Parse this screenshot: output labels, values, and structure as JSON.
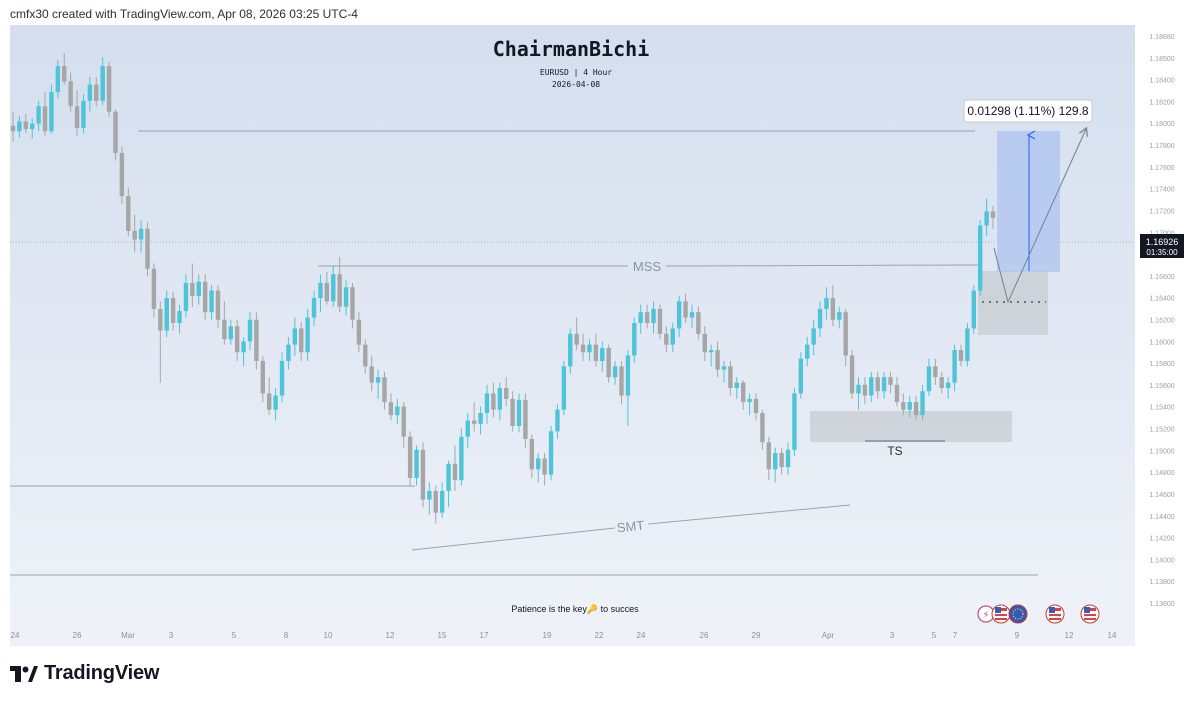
{
  "caption": "cmfx30 created with TradingView.com, Apr 08, 2026 03:25 UTC-4",
  "brand": "TradingView",
  "colors": {
    "bull": "#4dc4d8",
    "bear": "#a6a6a6",
    "background_top": "#d4deee",
    "background_bottom": "#eef2f8",
    "target_box": "#a9c0ef",
    "zone": "#c8ccd2"
  },
  "chart_data": {
    "type": "candlestick",
    "title": "ChairmanBichi",
    "subtitle": "EURUSD | 4 Hour",
    "date_label": "2026-04-08",
    "bottom_note": "Patience is the key🔑 to succes",
    "ylim": [
      1.132,
      1.187
    ],
    "y_ticks": [
      "1.18680",
      "1.18500",
      "1.18400",
      "1.18200",
      "1.18000",
      "1.17800",
      "1.17600",
      "1.17400",
      "1.17200",
      "1.17000",
      "1.16800",
      "1.16600",
      "1.16400",
      "1.16200",
      "1.16000",
      "1.15800",
      "1.15600",
      "1.15400",
      "1.15200",
      "1.15000",
      "1.14800",
      "1.14600",
      "1.14400",
      "1.14200",
      "1.14000",
      "1.13800",
      "1.13600"
    ],
    "x_ticks": [
      "24",
      "26",
      "Mar",
      "3",
      "5",
      "8",
      "10",
      "12",
      "15",
      "17",
      "19",
      "22",
      "24",
      "26",
      "29",
      "Apr",
      "3",
      "5",
      "7",
      "9",
      "12",
      "14"
    ],
    "current_price": "1.16926",
    "countdown": "01:35:00",
    "measure_label": "0.01298 (1.11%) 129.8",
    "annotations": [
      "MSS",
      "SMT",
      "TS"
    ],
    "candles": [
      {
        "o": 1.1777,
        "h": 1.179,
        "l": 1.1762,
        "c": 1.1772
      },
      {
        "o": 1.1772,
        "h": 1.1786,
        "l": 1.1766,
        "c": 1.1781
      },
      {
        "o": 1.1781,
        "h": 1.1788,
        "l": 1.177,
        "c": 1.1774
      },
      {
        "o": 1.1774,
        "h": 1.1784,
        "l": 1.1765,
        "c": 1.1779
      },
      {
        "o": 1.1779,
        "h": 1.18,
        "l": 1.1772,
        "c": 1.1795
      },
      {
        "o": 1.1795,
        "h": 1.1808,
        "l": 1.1768,
        "c": 1.1772
      },
      {
        "o": 1.1772,
        "h": 1.1815,
        "l": 1.177,
        "c": 1.1808
      },
      {
        "o": 1.1808,
        "h": 1.1838,
        "l": 1.1802,
        "c": 1.1832
      },
      {
        "o": 1.1832,
        "h": 1.1844,
        "l": 1.1815,
        "c": 1.1818
      },
      {
        "o": 1.1818,
        "h": 1.1826,
        "l": 1.179,
        "c": 1.1795
      },
      {
        "o": 1.1795,
        "h": 1.181,
        "l": 1.1768,
        "c": 1.1775
      },
      {
        "o": 1.1775,
        "h": 1.1806,
        "l": 1.177,
        "c": 1.18
      },
      {
        "o": 1.18,
        "h": 1.1822,
        "l": 1.179,
        "c": 1.1815
      },
      {
        "o": 1.1815,
        "h": 1.1822,
        "l": 1.1795,
        "c": 1.18
      },
      {
        "o": 1.18,
        "h": 1.184,
        "l": 1.1796,
        "c": 1.1832
      },
      {
        "o": 1.1832,
        "h": 1.1836,
        "l": 1.1785,
        "c": 1.179
      },
      {
        "o": 1.179,
        "h": 1.1792,
        "l": 1.1745,
        "c": 1.1752
      },
      {
        "o": 1.1752,
        "h": 1.1758,
        "l": 1.1705,
        "c": 1.1712
      },
      {
        "o": 1.1712,
        "h": 1.172,
        "l": 1.1675,
        "c": 1.168
      },
      {
        "o": 1.168,
        "h": 1.1695,
        "l": 1.166,
        "c": 1.1672
      },
      {
        "o": 1.1672,
        "h": 1.169,
        "l": 1.166,
        "c": 1.1682
      },
      {
        "o": 1.1682,
        "h": 1.1688,
        "l": 1.1638,
        "c": 1.1645
      },
      {
        "o": 1.1645,
        "h": 1.165,
        "l": 1.16,
        "c": 1.1608
      },
      {
        "o": 1.1608,
        "h": 1.1615,
        "l": 1.154,
        "c": 1.1588
      },
      {
        "o": 1.1588,
        "h": 1.1625,
        "l": 1.1582,
        "c": 1.1618
      },
      {
        "o": 1.1618,
        "h": 1.1624,
        "l": 1.1588,
        "c": 1.1595
      },
      {
        "o": 1.1595,
        "h": 1.1612,
        "l": 1.1585,
        "c": 1.1606
      },
      {
        "o": 1.1606,
        "h": 1.164,
        "l": 1.16,
        "c": 1.1632
      },
      {
        "o": 1.1632,
        "h": 1.165,
        "l": 1.161,
        "c": 1.162
      },
      {
        "o": 1.162,
        "h": 1.164,
        "l": 1.1612,
        "c": 1.1633
      },
      {
        "o": 1.1633,
        "h": 1.164,
        "l": 1.1598,
        "c": 1.1605
      },
      {
        "o": 1.1605,
        "h": 1.163,
        "l": 1.1598,
        "c": 1.1625
      },
      {
        "o": 1.1625,
        "h": 1.163,
        "l": 1.159,
        "c": 1.1598
      },
      {
        "o": 1.1598,
        "h": 1.1615,
        "l": 1.1575,
        "c": 1.158
      },
      {
        "o": 1.158,
        "h": 1.1598,
        "l": 1.1575,
        "c": 1.1592
      },
      {
        "o": 1.1592,
        "h": 1.1598,
        "l": 1.156,
        "c": 1.1568
      },
      {
        "o": 1.1568,
        "h": 1.1582,
        "l": 1.1555,
        "c": 1.1578
      },
      {
        "o": 1.1578,
        "h": 1.1605,
        "l": 1.157,
        "c": 1.1598
      },
      {
        "o": 1.1598,
        "h": 1.1605,
        "l": 1.1552,
        "c": 1.156
      },
      {
        "o": 1.156,
        "h": 1.1565,
        "l": 1.1522,
        "c": 1.153
      },
      {
        "o": 1.153,
        "h": 1.1545,
        "l": 1.151,
        "c": 1.1515
      },
      {
        "o": 1.1515,
        "h": 1.1535,
        "l": 1.1505,
        "c": 1.1528
      },
      {
        "o": 1.1528,
        "h": 1.1568,
        "l": 1.1522,
        "c": 1.156
      },
      {
        "o": 1.156,
        "h": 1.1582,
        "l": 1.1552,
        "c": 1.1575
      },
      {
        "o": 1.1575,
        "h": 1.16,
        "l": 1.1565,
        "c": 1.159
      },
      {
        "o": 1.159,
        "h": 1.1596,
        "l": 1.156,
        "c": 1.1568
      },
      {
        "o": 1.1568,
        "h": 1.1608,
        "l": 1.156,
        "c": 1.16
      },
      {
        "o": 1.16,
        "h": 1.1625,
        "l": 1.1592,
        "c": 1.1618
      },
      {
        "o": 1.1618,
        "h": 1.164,
        "l": 1.1605,
        "c": 1.1632
      },
      {
        "o": 1.1632,
        "h": 1.1642,
        "l": 1.1612,
        "c": 1.1615
      },
      {
        "o": 1.1615,
        "h": 1.1648,
        "l": 1.161,
        "c": 1.164
      },
      {
        "o": 1.164,
        "h": 1.1656,
        "l": 1.1605,
        "c": 1.161
      },
      {
        "o": 1.161,
        "h": 1.1635,
        "l": 1.1602,
        "c": 1.1628
      },
      {
        "o": 1.1628,
        "h": 1.1632,
        "l": 1.159,
        "c": 1.1598
      },
      {
        "o": 1.1598,
        "h": 1.1605,
        "l": 1.1568,
        "c": 1.1575
      },
      {
        "o": 1.1575,
        "h": 1.158,
        "l": 1.1548,
        "c": 1.1555
      },
      {
        "o": 1.1555,
        "h": 1.1565,
        "l": 1.1532,
        "c": 1.154
      },
      {
        "o": 1.154,
        "h": 1.1552,
        "l": 1.1525,
        "c": 1.1545
      },
      {
        "o": 1.1545,
        "h": 1.155,
        "l": 1.1515,
        "c": 1.1522
      },
      {
        "o": 1.1522,
        "h": 1.153,
        "l": 1.1505,
        "c": 1.151
      },
      {
        "o": 1.151,
        "h": 1.1525,
        "l": 1.1502,
        "c": 1.1518
      },
      {
        "o": 1.1518,
        "h": 1.1522,
        "l": 1.148,
        "c": 1.149
      },
      {
        "o": 1.149,
        "h": 1.1495,
        "l": 1.1445,
        "c": 1.1452
      },
      {
        "o": 1.1452,
        "h": 1.1482,
        "l": 1.1445,
        "c": 1.1478
      },
      {
        "o": 1.1478,
        "h": 1.1485,
        "l": 1.1425,
        "c": 1.1432
      },
      {
        "o": 1.1432,
        "h": 1.1448,
        "l": 1.1418,
        "c": 1.144
      },
      {
        "o": 1.144,
        "h": 1.1445,
        "l": 1.141,
        "c": 1.142
      },
      {
        "o": 1.142,
        "h": 1.1448,
        "l": 1.1415,
        "c": 1.144
      },
      {
        "o": 1.144,
        "h": 1.1468,
        "l": 1.1425,
        "c": 1.1465
      },
      {
        "o": 1.1465,
        "h": 1.1482,
        "l": 1.144,
        "c": 1.145
      },
      {
        "o": 1.145,
        "h": 1.1498,
        "l": 1.1445,
        "c": 1.149
      },
      {
        "o": 1.149,
        "h": 1.1512,
        "l": 1.148,
        "c": 1.1505
      },
      {
        "o": 1.1505,
        "h": 1.1522,
        "l": 1.1495,
        "c": 1.1502
      },
      {
        "o": 1.1502,
        "h": 1.1518,
        "l": 1.1492,
        "c": 1.1512
      },
      {
        "o": 1.1512,
        "h": 1.1538,
        "l": 1.1502,
        "c": 1.153
      },
      {
        "o": 1.153,
        "h": 1.154,
        "l": 1.1508,
        "c": 1.1515
      },
      {
        "o": 1.1515,
        "h": 1.154,
        "l": 1.1505,
        "c": 1.1535
      },
      {
        "o": 1.1535,
        "h": 1.1545,
        "l": 1.1518,
        "c": 1.1525
      },
      {
        "o": 1.1525,
        "h": 1.1532,
        "l": 1.1495,
        "c": 1.15
      },
      {
        "o": 1.15,
        "h": 1.153,
        "l": 1.1494,
        "c": 1.1524
      },
      {
        "o": 1.1524,
        "h": 1.153,
        "l": 1.148,
        "c": 1.1488
      },
      {
        "o": 1.1488,
        "h": 1.1492,
        "l": 1.1452,
        "c": 1.146
      },
      {
        "o": 1.146,
        "h": 1.1475,
        "l": 1.1448,
        "c": 1.147
      },
      {
        "o": 1.147,
        "h": 1.1475,
        "l": 1.1445,
        "c": 1.1455
      },
      {
        "o": 1.1455,
        "h": 1.15,
        "l": 1.145,
        "c": 1.1495
      },
      {
        "o": 1.1495,
        "h": 1.152,
        "l": 1.1488,
        "c": 1.1515
      },
      {
        "o": 1.1515,
        "h": 1.156,
        "l": 1.151,
        "c": 1.1555
      },
      {
        "o": 1.1555,
        "h": 1.159,
        "l": 1.1548,
        "c": 1.1585
      },
      {
        "o": 1.1585,
        "h": 1.16,
        "l": 1.157,
        "c": 1.1575
      },
      {
        "o": 1.1575,
        "h": 1.1585,
        "l": 1.156,
        "c": 1.1568
      },
      {
        "o": 1.1568,
        "h": 1.158,
        "l": 1.156,
        "c": 1.1575
      },
      {
        "o": 1.1575,
        "h": 1.1585,
        "l": 1.1555,
        "c": 1.156
      },
      {
        "o": 1.156,
        "h": 1.1578,
        "l": 1.155,
        "c": 1.1572
      },
      {
        "o": 1.1572,
        "h": 1.1575,
        "l": 1.154,
        "c": 1.1545
      },
      {
        "o": 1.1545,
        "h": 1.156,
        "l": 1.1538,
        "c": 1.1555
      },
      {
        "o": 1.1555,
        "h": 1.156,
        "l": 1.152,
        "c": 1.1528
      },
      {
        "o": 1.1528,
        "h": 1.157,
        "l": 1.15,
        "c": 1.1565
      },
      {
        "o": 1.1565,
        "h": 1.16,
        "l": 1.1558,
        "c": 1.1595
      },
      {
        "o": 1.1595,
        "h": 1.1612,
        "l": 1.1585,
        "c": 1.1605
      },
      {
        "o": 1.1605,
        "h": 1.1612,
        "l": 1.159,
        "c": 1.1595
      },
      {
        "o": 1.1595,
        "h": 1.1615,
        "l": 1.1585,
        "c": 1.1608
      },
      {
        "o": 1.1608,
        "h": 1.1612,
        "l": 1.158,
        "c": 1.1585
      },
      {
        "o": 1.1585,
        "h": 1.1592,
        "l": 1.1568,
        "c": 1.1575
      },
      {
        "o": 1.1575,
        "h": 1.1595,
        "l": 1.1568,
        "c": 1.159
      },
      {
        "o": 1.159,
        "h": 1.162,
        "l": 1.1582,
        "c": 1.1615
      },
      {
        "o": 1.1615,
        "h": 1.1622,
        "l": 1.1595,
        "c": 1.16
      },
      {
        "o": 1.16,
        "h": 1.1612,
        "l": 1.159,
        "c": 1.1605
      },
      {
        "o": 1.1605,
        "h": 1.161,
        "l": 1.158,
        "c": 1.1585
      },
      {
        "o": 1.1585,
        "h": 1.1592,
        "l": 1.156,
        "c": 1.1568
      },
      {
        "o": 1.1568,
        "h": 1.1575,
        "l": 1.1555,
        "c": 1.157
      },
      {
        "o": 1.157,
        "h": 1.1578,
        "l": 1.1545,
        "c": 1.1552
      },
      {
        "o": 1.1552,
        "h": 1.156,
        "l": 1.154,
        "c": 1.1555
      },
      {
        "o": 1.1555,
        "h": 1.156,
        "l": 1.1528,
        "c": 1.1535
      },
      {
        "o": 1.1535,
        "h": 1.1545,
        "l": 1.1525,
        "c": 1.154
      },
      {
        "o": 1.154,
        "h": 1.1542,
        "l": 1.1515,
        "c": 1.1522
      },
      {
        "o": 1.1522,
        "h": 1.153,
        "l": 1.151,
        "c": 1.1525
      },
      {
        "o": 1.1525,
        "h": 1.153,
        "l": 1.1505,
        "c": 1.1512
      },
      {
        "o": 1.1512,
        "h": 1.1515,
        "l": 1.1478,
        "c": 1.1485
      },
      {
        "o": 1.1485,
        "h": 1.149,
        "l": 1.145,
        "c": 1.146
      },
      {
        "o": 1.146,
        "h": 1.148,
        "l": 1.1448,
        "c": 1.1475
      },
      {
        "o": 1.1475,
        "h": 1.148,
        "l": 1.1455,
        "c": 1.1462
      },
      {
        "o": 1.1462,
        "h": 1.1485,
        "l": 1.1455,
        "c": 1.1478
      },
      {
        "o": 1.1478,
        "h": 1.1535,
        "l": 1.1472,
        "c": 1.153
      },
      {
        "o": 1.153,
        "h": 1.1568,
        "l": 1.1525,
        "c": 1.1562
      },
      {
        "o": 1.1562,
        "h": 1.1582,
        "l": 1.1555,
        "c": 1.1575
      },
      {
        "o": 1.1575,
        "h": 1.1598,
        "l": 1.1565,
        "c": 1.159
      },
      {
        "o": 1.159,
        "h": 1.1615,
        "l": 1.1582,
        "c": 1.1608
      },
      {
        "o": 1.1608,
        "h": 1.1628,
        "l": 1.1598,
        "c": 1.1618
      },
      {
        "o": 1.1618,
        "h": 1.163,
        "l": 1.1592,
        "c": 1.1598
      },
      {
        "o": 1.1598,
        "h": 1.161,
        "l": 1.159,
        "c": 1.1605
      },
      {
        "o": 1.1605,
        "h": 1.1608,
        "l": 1.1555,
        "c": 1.1565
      },
      {
        "o": 1.1565,
        "h": 1.157,
        "l": 1.1525,
        "c": 1.153
      },
      {
        "o": 1.153,
        "h": 1.1545,
        "l": 1.1515,
        "c": 1.1538
      },
      {
        "o": 1.1538,
        "h": 1.1545,
        "l": 1.152,
        "c": 1.1528
      },
      {
        "o": 1.1528,
        "h": 1.155,
        "l": 1.1522,
        "c": 1.1545
      },
      {
        "o": 1.1545,
        "h": 1.155,
        "l": 1.1525,
        "c": 1.1532
      },
      {
        "o": 1.1532,
        "h": 1.155,
        "l": 1.1525,
        "c": 1.1545
      },
      {
        "o": 1.1545,
        "h": 1.155,
        "l": 1.153,
        "c": 1.1538
      },
      {
        "o": 1.1538,
        "h": 1.1545,
        "l": 1.1518,
        "c": 1.1522
      },
      {
        "o": 1.1522,
        "h": 1.153,
        "l": 1.151,
        "c": 1.1515
      },
      {
        "o": 1.1515,
        "h": 1.1528,
        "l": 1.1508,
        "c": 1.1522
      },
      {
        "o": 1.1522,
        "h": 1.1528,
        "l": 1.1505,
        "c": 1.151
      },
      {
        "o": 1.151,
        "h": 1.1538,
        "l": 1.1505,
        "c": 1.1532
      },
      {
        "o": 1.1532,
        "h": 1.1562,
        "l": 1.1528,
        "c": 1.1555
      },
      {
        "o": 1.1555,
        "h": 1.1562,
        "l": 1.1538,
        "c": 1.1545
      },
      {
        "o": 1.1545,
        "h": 1.155,
        "l": 1.153,
        "c": 1.1535
      },
      {
        "o": 1.1535,
        "h": 1.1545,
        "l": 1.1525,
        "c": 1.154
      },
      {
        "o": 1.154,
        "h": 1.1575,
        "l": 1.1532,
        "c": 1.157
      },
      {
        "o": 1.157,
        "h": 1.1575,
        "l": 1.1555,
        "c": 1.156
      },
      {
        "o": 1.156,
        "h": 1.1595,
        "l": 1.1555,
        "c": 1.159
      },
      {
        "o": 1.159,
        "h": 1.163,
        "l": 1.1585,
        "c": 1.1625
      },
      {
        "o": 1.1625,
        "h": 1.169,
        "l": 1.162,
        "c": 1.1685
      },
      {
        "o": 1.1685,
        "h": 1.171,
        "l": 1.1675,
        "c": 1.1698
      },
      {
        "o": 1.1698,
        "h": 1.1703,
        "l": 1.1682,
        "c": 1.1692
      }
    ]
  }
}
